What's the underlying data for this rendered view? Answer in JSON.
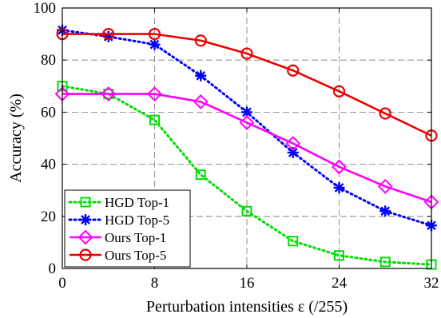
{
  "chart_data": {
    "type": "line",
    "title": "",
    "xlabel": "Perturbation intensities ε (/255)",
    "ylabel": "Accuracy (%)",
    "xlim": [
      0,
      32
    ],
    "ylim": [
      0,
      100
    ],
    "xticks": [
      0,
      8,
      16,
      24,
      32
    ],
    "yticks": [
      0,
      20,
      40,
      60,
      80,
      100
    ],
    "grid": true,
    "legend_position": "bottom-left",
    "x": [
      0,
      4,
      8,
      12,
      16,
      20,
      24,
      28,
      32
    ],
    "series": [
      {
        "name": "HGD Top-1",
        "values": [
          70,
          67,
          57,
          36,
          22,
          10.5,
          5,
          2.5,
          1.5
        ],
        "color": "#00dd00",
        "line_style": "dotted",
        "marker": "square"
      },
      {
        "name": "HGD Top-5",
        "values": [
          91.5,
          89,
          86,
          74,
          60,
          44.5,
          31,
          22,
          16.5
        ],
        "color": "#0000ff",
        "line_style": "dotted",
        "marker": "asterisk"
      },
      {
        "name": "Ours  Top-1",
        "values": [
          67,
          67,
          67,
          64,
          56,
          48,
          39,
          31.5,
          25.5
        ],
        "color": "#ff00ff",
        "line_style": "solid",
        "marker": "diamond"
      },
      {
        "name": "Ours  Top-5",
        "values": [
          90,
          90,
          90,
          87.5,
          82.5,
          76,
          68,
          59.5,
          51
        ],
        "color": "#ee0000",
        "line_style": "solid",
        "marker": "circle"
      }
    ]
  }
}
